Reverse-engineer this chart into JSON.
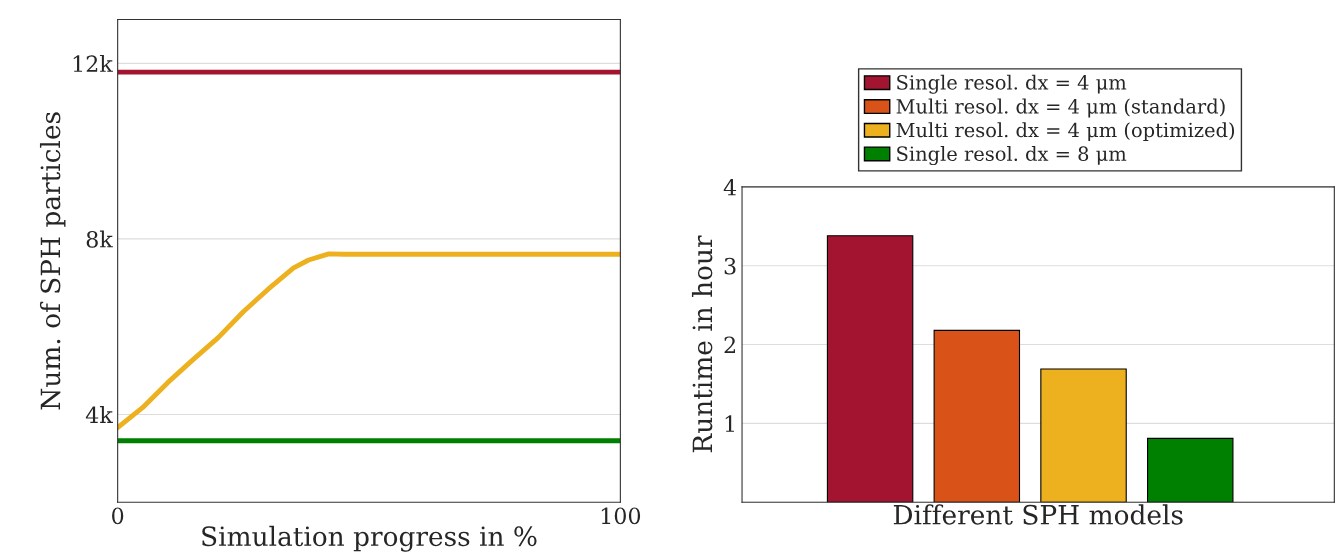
{
  "chart_data": [
    {
      "type": "line",
      "xlabel": "Simulation progress in %",
      "ylabel": "Num. of SPH particles",
      "xlim": [
        0,
        100
      ],
      "xticks": [
        0,
        100
      ],
      "ylim": [
        2000,
        13000
      ],
      "yticks": [
        {
          "value": 4000,
          "label": "4k"
        },
        {
          "value": 8000,
          "label": "8k"
        },
        {
          "value": 12000,
          "label": "12k"
        }
      ],
      "grid": "y",
      "legend": false,
      "series": [
        {
          "color": "#a2142f",
          "x": [
            0,
            100
          ],
          "values": [
            11800,
            11800
          ]
        },
        {
          "color": "#edb120",
          "x": [
            0,
            5,
            10,
            15,
            20,
            25,
            30,
            35,
            38,
            42,
            45,
            100
          ],
          "values": [
            3700,
            4160,
            4730,
            5250,
            5750,
            6340,
            6860,
            7340,
            7520,
            7660,
            7650,
            7650
          ]
        },
        {
          "color": "#008000",
          "x": [
            0,
            100
          ],
          "values": [
            3400,
            3400
          ]
        }
      ]
    },
    {
      "type": "bar",
      "xlabel": "Different SPH models",
      "ylabel": "Runtime in hour",
      "categories": [
        null,
        null,
        null,
        null
      ],
      "ylim": [
        0,
        4
      ],
      "yticks": [
        {
          "value": 0,
          "label": null
        },
        1,
        2,
        3,
        4
      ],
      "grid": "y",
      "legend": "top",
      "series": [
        {
          "name": "Single resol. dx = 4 μm",
          "color": "#a2142f",
          "values": [
            3.38,
            null,
            null,
            null
          ]
        },
        {
          "name": "Multi resol. dx = 4 μm (standard)",
          "color": "#d95319",
          "values": [
            null,
            2.18,
            null,
            null
          ]
        },
        {
          "name": "Multi resol. dx = 4 μm (optimized)",
          "color": "#edb120",
          "values": [
            null,
            null,
            1.69,
            null
          ]
        },
        {
          "name": "Single resol. dx = 8 μm",
          "color": "#008000",
          "values": [
            null,
            null,
            null,
            0.81
          ]
        }
      ]
    }
  ]
}
